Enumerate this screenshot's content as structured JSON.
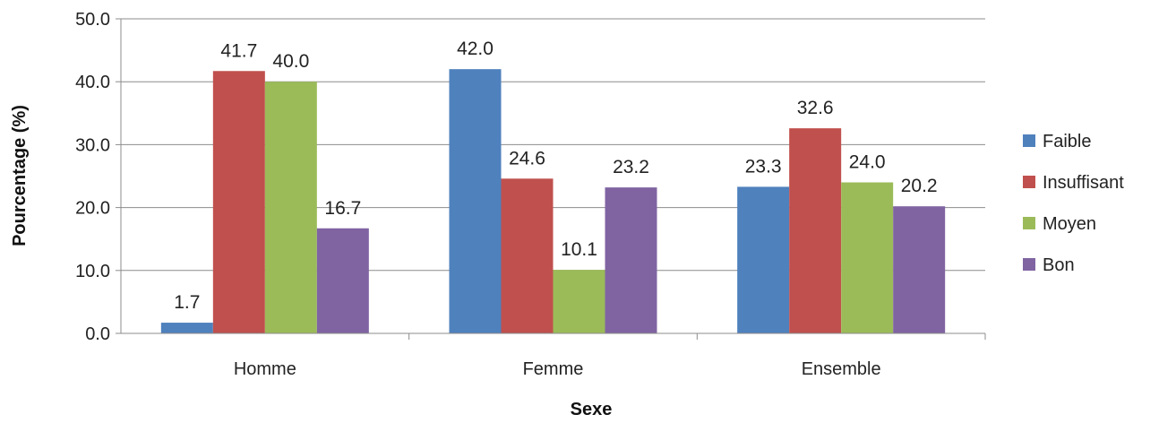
{
  "chart_data": {
    "type": "bar",
    "xlabel": "Sexe",
    "ylabel": "Pourcentage (%)",
    "ylim": [
      0,
      50
    ],
    "yticks": [
      "0.0",
      "10.0",
      "20.0",
      "30.0",
      "40.0",
      "50.0"
    ],
    "categories": [
      "Homme",
      "Femme",
      "Ensemble"
    ],
    "series": [
      {
        "name": "Faible",
        "color": "#4F81BD",
        "values": [
          1.7,
          42.0,
          23.3
        ],
        "labels": [
          "1.7",
          "42.0",
          "23.3"
        ]
      },
      {
        "name": "Insuffisant",
        "color": "#C0504D",
        "values": [
          41.7,
          24.6,
          32.6
        ],
        "labels": [
          "41.7",
          "24.6",
          "32.6"
        ]
      },
      {
        "name": "Moyen",
        "color": "#9BBB59",
        "values": [
          40.0,
          10.1,
          24.0
        ],
        "labels": [
          "40.0",
          "10.1",
          "24.0"
        ]
      },
      {
        "name": "Bon",
        "color": "#8064A2",
        "values": [
          16.7,
          23.2,
          20.2
        ],
        "labels": [
          "16.7",
          "23.2",
          "20.2"
        ]
      }
    ],
    "grid": true,
    "legend_position": "right"
  }
}
